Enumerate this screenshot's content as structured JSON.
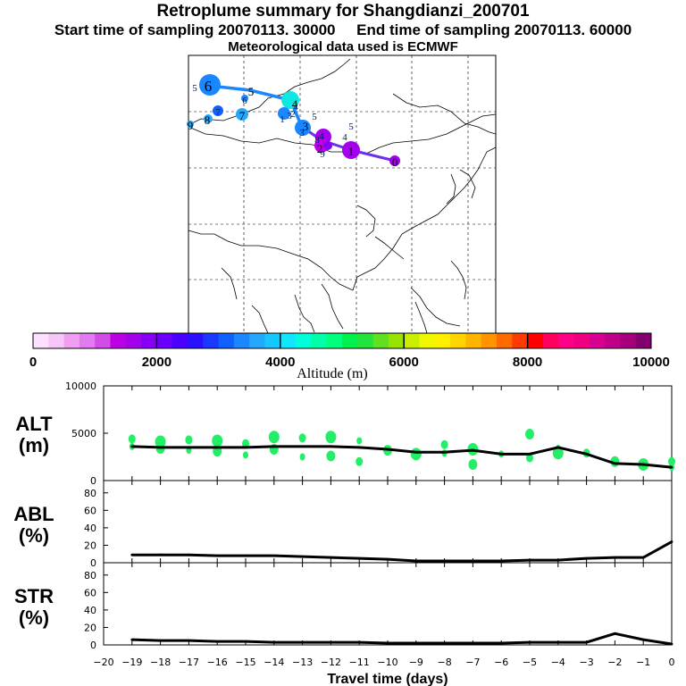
{
  "title": "Retroplume summary for Shangdianzi_200701",
  "subtitle": "Start time of sampling 20070113. 30000     End time of sampling 20070113. 60000",
  "meteo_note": "Meteorological data used is ECMWF",
  "colorbar": {
    "label": "Altitude (m)",
    "ticks": [
      "0",
      "2000",
      "4000",
      "6000",
      "8000",
      "10000"
    ],
    "colors": [
      "#fde0fd",
      "#f7c6f8",
      "#ef9ef3",
      "#e27bf0",
      "#d24ce8",
      "#bb00e6",
      "#a300ec",
      "#8500f5",
      "#6a00fb",
      "#4b00ff",
      "#2b10ff",
      "#1a38ff",
      "#1060ff",
      "#1a86ff",
      "#22a8ff",
      "#16c7ff",
      "#10e6ff",
      "#00ffd8",
      "#00ffa8",
      "#00ff7a",
      "#00f04e",
      "#22e43a",
      "#60e020",
      "#98e400",
      "#c8ee00",
      "#eef800",
      "#fff000",
      "#ffd400",
      "#ffb400",
      "#ff9400",
      "#ff6a00",
      "#ff3a00",
      "#ff0000",
      "#ff0060",
      "#ff0088",
      "#f00080",
      "#d80090",
      "#c00088",
      "#a4007c",
      "#840070"
    ]
  },
  "map": {
    "points": [
      {
        "label": "0",
        "alt": 2000
      },
      {
        "label": "1",
        "alt": 2100
      },
      {
        "label": "2",
        "alt": 2300
      },
      {
        "label": "3",
        "alt": 3600
      },
      {
        "label": "4",
        "alt": 3900
      },
      {
        "label": "5",
        "alt": 3300
      },
      {
        "label": "6",
        "alt": 3300
      },
      {
        "label": "7",
        "alt": 3300
      },
      {
        "label": "8",
        "alt": 3000
      },
      {
        "label": "9",
        "alt": 3600
      }
    ],
    "scatter_labels": [
      "1",
      "2",
      "3",
      "4",
      "5",
      "6",
      "7",
      "8",
      "9",
      "5",
      "4",
      "3",
      "4",
      "5"
    ]
  },
  "chart_data": [
    {
      "type": "scatter",
      "name": "ALT",
      "ylabel": "ALT\n(m)",
      "ylim": [
        0,
        10000
      ],
      "yticks": [
        "0",
        "5000",
        "10000"
      ],
      "x": [
        -19,
        -18,
        -17,
        -16,
        -15,
        -14,
        -13,
        -12,
        -11,
        -10,
        -9,
        -8,
        -7,
        -6,
        -5,
        -4,
        -3,
        -2,
        -1,
        0
      ],
      "line": [
        3600,
        3500,
        3500,
        3500,
        3500,
        3600,
        3600,
        3600,
        3500,
        3300,
        3000,
        3000,
        3200,
        2800,
        2800,
        3500,
        2800,
        1800,
        1700,
        1400
      ],
      "scatter_points": [
        {
          "x": -19.0,
          "y": 3600
        },
        {
          "x": -19.0,
          "y": 4400
        },
        {
          "x": -18.0,
          "y": 3400
        },
        {
          "x": -18.0,
          "y": 4100
        },
        {
          "x": -17.0,
          "y": 3200
        },
        {
          "x": -17.0,
          "y": 4300
        },
        {
          "x": -16.0,
          "y": 3100
        },
        {
          "x": -16.0,
          "y": 4200
        },
        {
          "x": -15.0,
          "y": 2700
        },
        {
          "x": -15.0,
          "y": 3900
        },
        {
          "x": -14.0,
          "y": 3300
        },
        {
          "x": -14.0,
          "y": 4600
        },
        {
          "x": -13.0,
          "y": 2500
        },
        {
          "x": -13.0,
          "y": 4500
        },
        {
          "x": -12.0,
          "y": 2600
        },
        {
          "x": -12.0,
          "y": 4600
        },
        {
          "x": -11.0,
          "y": 4200
        },
        {
          "x": -11.0,
          "y": 2000
        },
        {
          "x": -10.0,
          "y": 3200
        },
        {
          "x": -9.0,
          "y": 2800
        },
        {
          "x": -8.0,
          "y": 2900
        },
        {
          "x": -8.0,
          "y": 3800
        },
        {
          "x": -7.0,
          "y": 1700
        },
        {
          "x": -7.0,
          "y": 3300
        },
        {
          "x": -6.0,
          "y": 2800
        },
        {
          "x": -5.0,
          "y": 2400
        },
        {
          "x": -5.0,
          "y": 4900
        },
        {
          "x": -4.0,
          "y": 2900
        },
        {
          "x": -4.0,
          "y": 3400
        },
        {
          "x": -3.0,
          "y": 2900
        },
        {
          "x": -2.0,
          "y": 2000
        },
        {
          "x": -1.0,
          "y": 1700
        },
        {
          "x": 0.0,
          "y": 1400
        },
        {
          "x": 0.0,
          "y": 2000
        }
      ]
    },
    {
      "type": "line",
      "name": "ABL",
      "ylabel": "ABL\n(%)",
      "ylim": [
        0,
        90
      ],
      "yticks": [
        "0",
        "20",
        "40",
        "60",
        "80"
      ],
      "x": [
        -19,
        -18,
        -17,
        -16,
        -15,
        -14,
        -13,
        -12,
        -11,
        -10,
        -9,
        -8,
        -7,
        -6,
        -5,
        -4,
        -3,
        -2,
        -1,
        0
      ],
      "values": [
        9,
        9,
        9,
        8,
        8,
        8,
        7,
        6,
        5,
        4,
        2,
        2,
        2,
        2,
        3,
        3,
        5,
        6,
        6,
        24
      ]
    },
    {
      "type": "line",
      "name": "STR",
      "ylabel": "STR\n(%)",
      "ylim": [
        0,
        90
      ],
      "yticks": [
        "0",
        "20",
        "40",
        "60",
        "80"
      ],
      "x": [
        -19,
        -18,
        -17,
        -16,
        -15,
        -14,
        -13,
        -12,
        -11,
        -10,
        -9,
        -8,
        -7,
        -6,
        -5,
        -4,
        -3,
        -2,
        -1,
        0
      ],
      "values": [
        6,
        5,
        5,
        4,
        4,
        3,
        3,
        3,
        3,
        2,
        2,
        2,
        2,
        2,
        3,
        3,
        3,
        13,
        6,
        1
      ]
    }
  ],
  "x_axis": {
    "label": "Travel time (days)",
    "ticks": [
      "−20",
      "−19",
      "−18",
      "−17",
      "−16",
      "−15",
      "−14",
      "−13",
      "−12",
      "−11",
      "−10",
      "−9",
      "−8",
      "−7",
      "−6",
      "−5",
      "−4",
      "−3",
      "−2",
      "−1",
      "0"
    ]
  }
}
